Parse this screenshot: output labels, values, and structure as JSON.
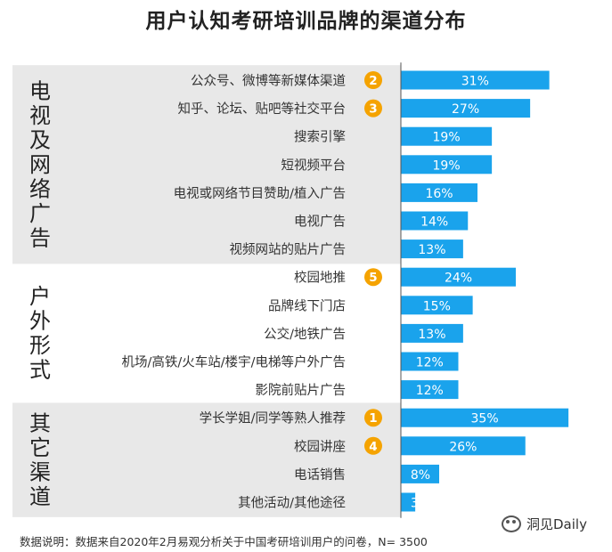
{
  "title": "用户认知考研培训品牌的渠道分布",
  "footer": "数据说明：数据来自2020年2月易观分析关于中国考研培训用户的问卷，N= 3500",
  "brand": "洞见Daily",
  "colors": {
    "bar": "#1aa3ec",
    "badge": "#f5a300",
    "band": "#e8e8e8",
    "axis": "#555555"
  },
  "chart_data": {
    "type": "bar",
    "orientation": "horizontal",
    "title": "用户认知考研培训品牌的渠道分布",
    "unit": "%",
    "xlim": [
      0,
      40
    ],
    "groups": [
      {
        "name": "电视及网络广告",
        "items": [
          {
            "label": "公众号、微博等新媒体渠道",
            "value": 31,
            "rank": "2"
          },
          {
            "label": "知乎、论坛、贴吧等社交平台",
            "value": 27,
            "rank": "3"
          },
          {
            "label": "搜索引擎",
            "value": 19,
            "rank": ""
          },
          {
            "label": "短视频平台",
            "value": 19,
            "rank": ""
          },
          {
            "label": "电视或网络节目赞助/植入广告",
            "value": 16,
            "rank": ""
          },
          {
            "label": "电视广告",
            "value": 14,
            "rank": ""
          },
          {
            "label": "视频网站的贴片广告",
            "value": 13,
            "rank": ""
          }
        ]
      },
      {
        "name": "户外形式",
        "items": [
          {
            "label": "校园地推",
            "value": 24,
            "rank": "5"
          },
          {
            "label": "品牌线下门店",
            "value": 15,
            "rank": ""
          },
          {
            "label": "公交/地铁广告",
            "value": 13,
            "rank": ""
          },
          {
            "label": "机场/高铁/火车站/楼宇/电梯等户外广告",
            "value": 12,
            "rank": ""
          },
          {
            "label": "影院前贴片广告",
            "value": 12,
            "rank": ""
          }
        ]
      },
      {
        "name": "其它渠道",
        "items": [
          {
            "label": "学长学姐/同学等熟人推荐",
            "value": 35,
            "rank": "1"
          },
          {
            "label": "校园讲座",
            "value": 26,
            "rank": "4"
          },
          {
            "label": "电话销售",
            "value": 8,
            "rank": ""
          },
          {
            "label": "其他活动/其他途径",
            "value": 3,
            "rank": ""
          }
        ]
      }
    ]
  }
}
